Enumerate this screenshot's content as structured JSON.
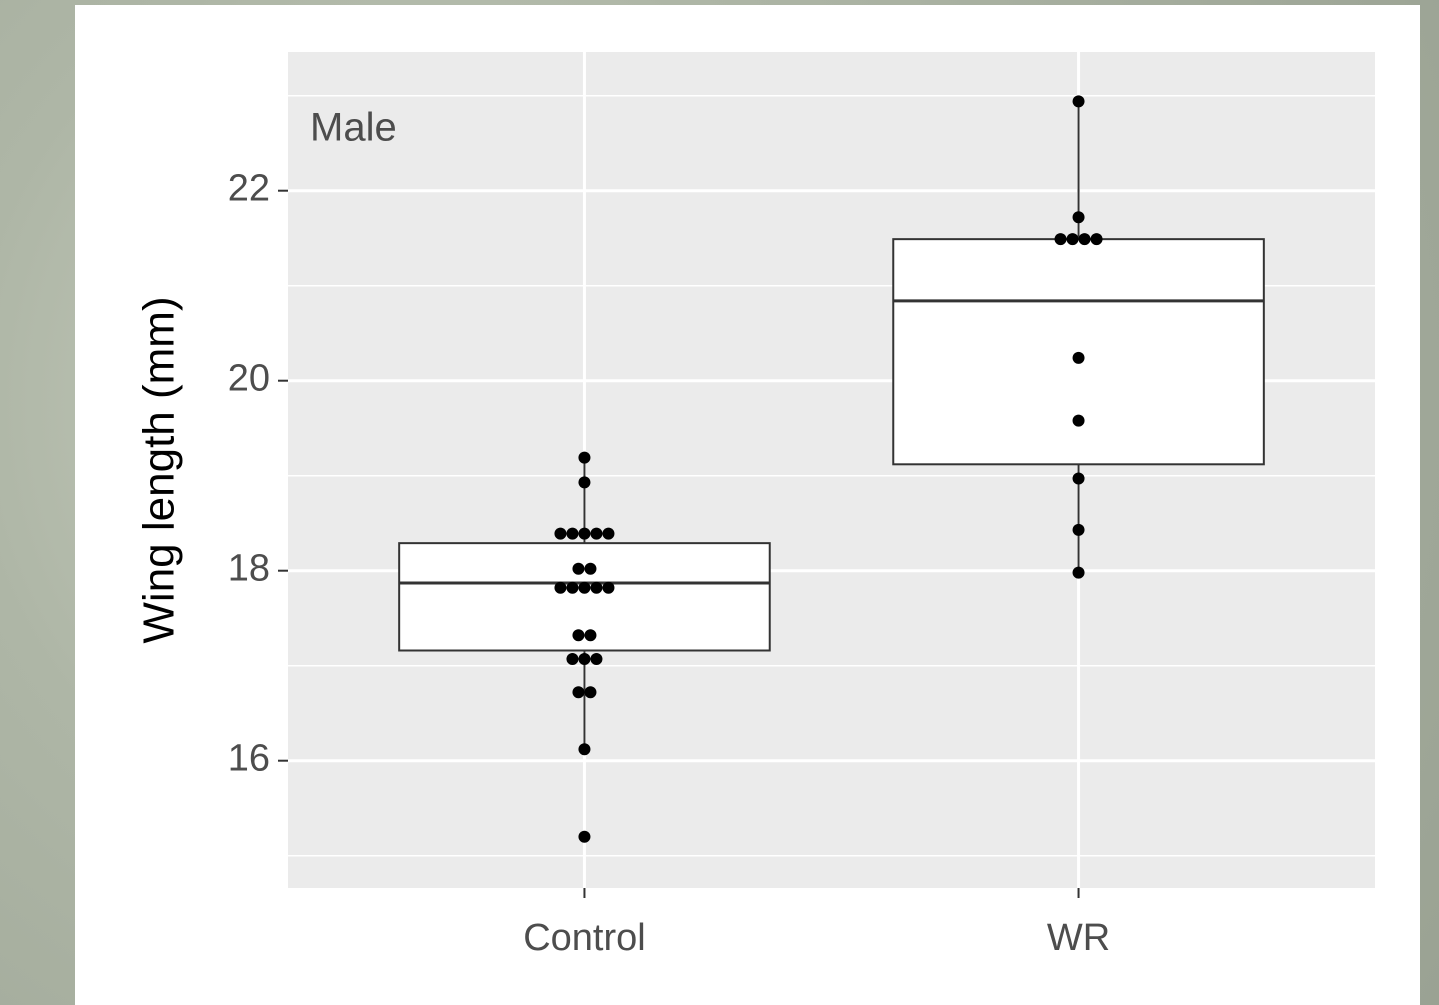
{
  "chart_data": {
    "type": "box",
    "annotation": "Male",
    "y_label": "Wing length (mm)",
    "categories": [
      "Control",
      "WR"
    ],
    "ylim": [
      14.66,
      23.46
    ],
    "yticks": [
      16,
      18,
      20,
      22
    ],
    "y_minor_grid": [
      15,
      17,
      19,
      21,
      23
    ],
    "grid": true,
    "box_fill": "#ffffff",
    "box_stroke": "#333333",
    "point_color": "#000000",
    "boxes": [
      {
        "whisker_low": 16.12,
        "q1": 17.16,
        "median": 17.87,
        "q3": 18.29,
        "whisker_high": 19.19
      },
      {
        "whisker_low": 17.98,
        "q1": 19.12,
        "median": 20.84,
        "q3": 21.49,
        "whisker_high": 22.94
      }
    ],
    "points": [
      [
        19.19,
        18.93,
        18.39,
        18.39,
        18.39,
        18.39,
        18.39,
        18.02,
        18.02,
        17.82,
        17.82,
        17.82,
        17.82,
        17.82,
        17.32,
        17.32,
        17.07,
        17.07,
        17.07,
        16.72,
        16.72,
        16.12,
        15.2
      ],
      [
        22.94,
        21.72,
        21.49,
        21.49,
        21.49,
        21.49,
        20.24,
        19.58,
        18.97,
        18.43,
        17.98
      ]
    ]
  }
}
